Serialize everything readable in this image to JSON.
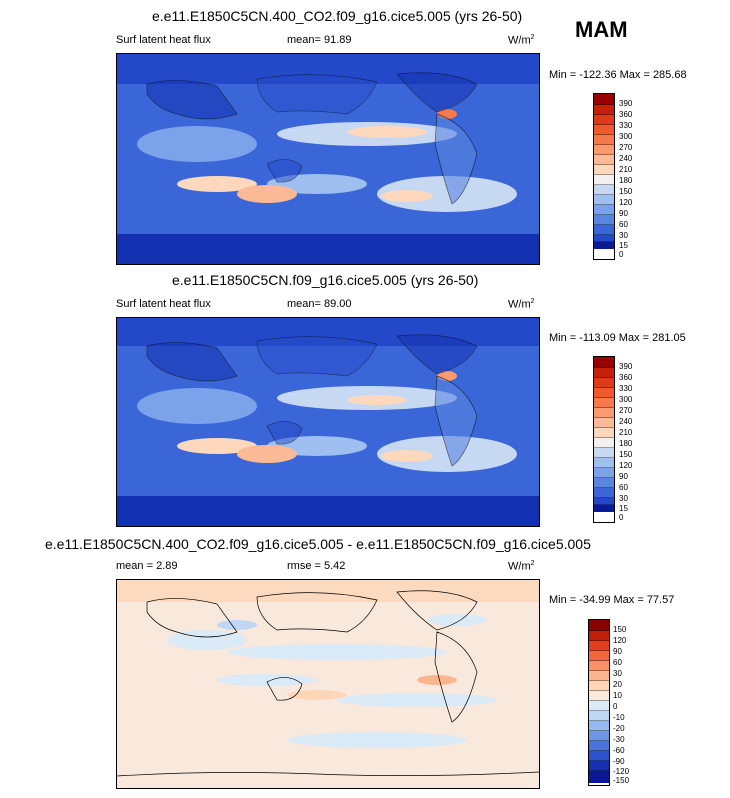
{
  "season": "MAM",
  "colors": {
    "abs": [
      "#9a0000",
      "#c4200a",
      "#dd3a18",
      "#ee5a2c",
      "#f5794a",
      "#f99a6f",
      "#fbb995",
      "#fdd8bd",
      "#f3eef0",
      "#c6d8f2",
      "#9ebff0",
      "#7aa3ea",
      "#5a86e2",
      "#3a66d7",
      "#2449c8",
      "#1330b0",
      "#0a1a96"
    ],
    "diff": [
      "#8a0000",
      "#c0200a",
      "#e0401e",
      "#f26640",
      "#f99066",
      "#fbb58f",
      "#fdd6b8",
      "#f9e8dc",
      "#dbeaf7",
      "#c0d6f5",
      "#96b8f0",
      "#6f96e6",
      "#4c73dc",
      "#2d50cc",
      "#1830b0",
      "#0a1a92"
    ]
  },
  "panels": [
    {
      "title": "e.e11.E1850C5CN.400_CO2.f09_g16.cice5.005 (yrs 26-50)",
      "variable": "Surf latent heat flux",
      "mean_label": "mean=",
      "mean": "91.89",
      "units": "W/m",
      "units_sup": "2",
      "minmax": "Min = -122.36 Max = 285.68",
      "cbar_labels": [
        "390",
        "360",
        "330",
        "300",
        "270",
        "240",
        "210",
        "180",
        "150",
        "120",
        "90",
        "60",
        "30",
        "15",
        "0"
      ]
    },
    {
      "title": "e.e11.E1850C5CN.f09_g16.cice5.005 (yrs 26-50)",
      "variable": "Surf latent heat flux",
      "mean_label": "mean=",
      "mean": "89.00",
      "units": "W/m",
      "units_sup": "2",
      "minmax": "Min = -113.09 Max = 281.05",
      "cbar_labels": [
        "390",
        "360",
        "330",
        "300",
        "270",
        "240",
        "210",
        "180",
        "150",
        "120",
        "90",
        "60",
        "30",
        "15",
        "0"
      ]
    },
    {
      "title": "e.e11.E1850C5CN.400_CO2.f09_g16.cice5.005 - e.e11.E1850C5CN.f09_g16.cice5.005",
      "mean_label": "mean =",
      "mean": "2.89",
      "rmse_label": "rmse =",
      "rmse": "5.42",
      "units": "W/m",
      "units_sup": "2",
      "minmax": "Min = -34.99 Max = 77.57",
      "cbar_labels": [
        "150",
        "120",
        "90",
        "60",
        "30",
        "20",
        "10",
        "0",
        "-10",
        "-20",
        "-30",
        "-60",
        "-90",
        "-120",
        "-150"
      ]
    }
  ],
  "chart_data": [
    {
      "type": "heatmap",
      "title": "e.e11.E1850C5CN.400_CO2.f09_g16.cice5.005 (yrs 26-50)",
      "subtitle": "Surf latent heat flux",
      "mean": 91.89,
      "min": -122.36,
      "max": 285.68,
      "units": "W/m2",
      "levels": [
        0,
        15,
        30,
        60,
        90,
        120,
        150,
        180,
        210,
        240,
        270,
        300,
        330,
        360,
        390
      ],
      "colorbar": "blue-white-red"
    },
    {
      "type": "heatmap",
      "title": "e.e11.E1850C5CN.f09_g16.cice5.005 (yrs 26-50)",
      "subtitle": "Surf latent heat flux",
      "mean": 89.0,
      "min": -113.09,
      "max": 281.05,
      "units": "W/m2",
      "levels": [
        0,
        15,
        30,
        60,
        90,
        120,
        150,
        180,
        210,
        240,
        270,
        300,
        330,
        360,
        390
      ],
      "colorbar": "blue-white-red"
    },
    {
      "type": "heatmap",
      "title": "e.e11.E1850C5CN.400_CO2.f09_g16.cice5.005 - e.e11.E1850C5CN.f09_g16.cice5.005",
      "mean": 2.89,
      "rmse": 5.42,
      "min": -34.99,
      "max": 77.57,
      "units": "W/m2",
      "levels": [
        -150,
        -120,
        -90,
        -60,
        -30,
        -20,
        -10,
        0,
        10,
        20,
        30,
        60,
        90,
        120,
        150
      ],
      "colorbar": "blue-white-red"
    }
  ]
}
